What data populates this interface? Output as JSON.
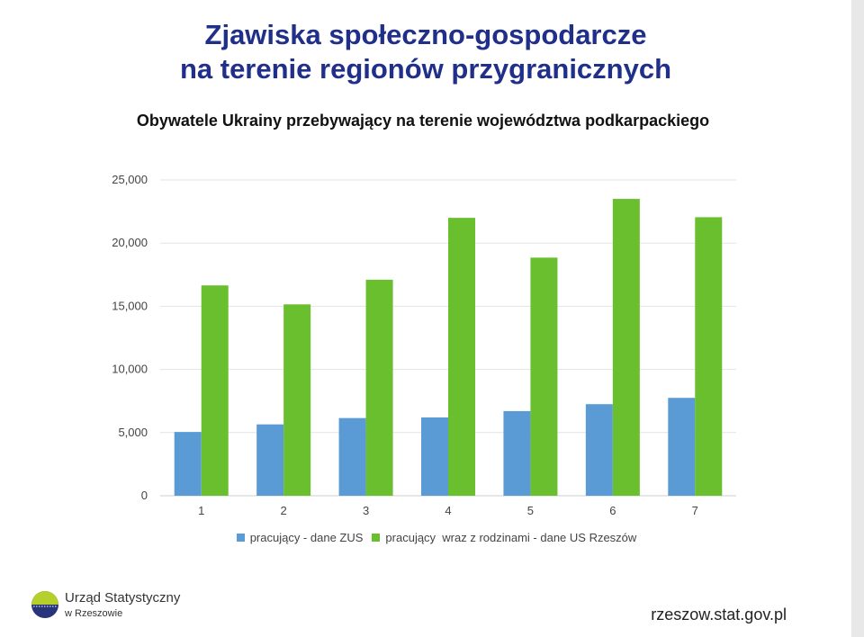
{
  "header": {
    "title_line1": "Zjawiska społeczno-gospodarcze",
    "title_line2": "na terenie regionów przygranicznych",
    "subtitle": "Obywatele Ukrainy przebywający na terenie województwa podkarpackiego"
  },
  "chart_data": {
    "type": "bar",
    "categories": [
      "1",
      "2",
      "3",
      "4",
      "5",
      "6",
      "7"
    ],
    "series": [
      {
        "name": "pracujący - dane ZUS",
        "color": "#5b9bd5",
        "values": [
          5050,
          5650,
          6150,
          6200,
          6700,
          7250,
          7750
        ]
      },
      {
        "name": "pracujący  wraz z rodzinami - dane US Rzeszów",
        "color": "#6abf2e",
        "values": [
          16650,
          15150,
          17100,
          22000,
          18850,
          23500,
          22050
        ]
      }
    ],
    "ylim": [
      0,
      25000
    ],
    "yticks": [
      "0",
      "5,000",
      "10,000",
      "15,000",
      "20,000",
      "25,000"
    ],
    "grid": true,
    "legend_position": "bottom"
  },
  "footer": {
    "logo_line1": "Urząd Statystyczny",
    "logo_line2": "w Rzeszowie",
    "url": "rzeszow.stat.gov.pl"
  }
}
